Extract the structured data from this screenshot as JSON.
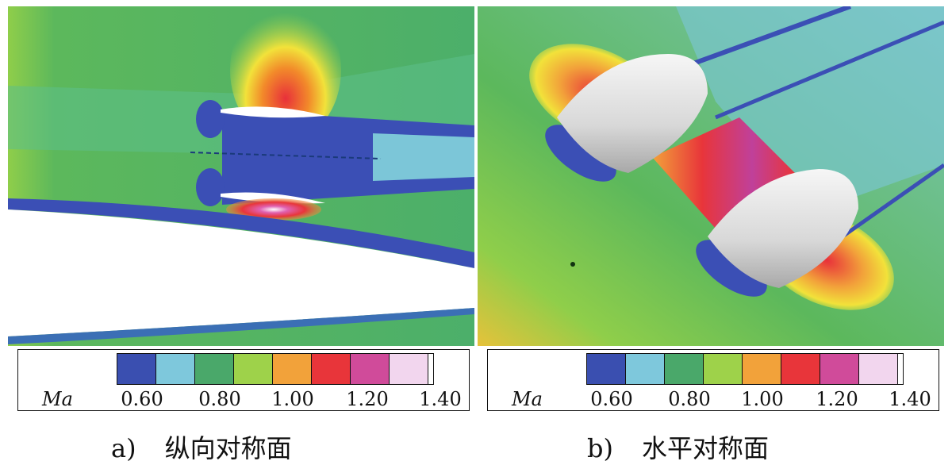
{
  "figure": {
    "panels": [
      {
        "id": "a",
        "caption_letter": "a)",
        "caption_text": "纵向对称面",
        "legend": {
          "variable": "Ma",
          "ticks": [
            "0.60",
            "0.80",
            "1.00",
            "1.20",
            "1.40"
          ]
        }
      },
      {
        "id": "b",
        "caption_letter": "b)",
        "caption_text": "水平对称面",
        "legend": {
          "variable": "Ma",
          "ticks": [
            "0.60",
            "0.80",
            "1.00",
            "1.20",
            "1.40"
          ]
        }
      }
    ],
    "colorbar_colors": [
      "#3a4fb0",
      "#7ec8dc",
      "#4aa86a",
      "#9ed24a",
      "#f2a23a",
      "#e8353a",
      "#d04b9a",
      "#f2d6ee"
    ]
  }
}
